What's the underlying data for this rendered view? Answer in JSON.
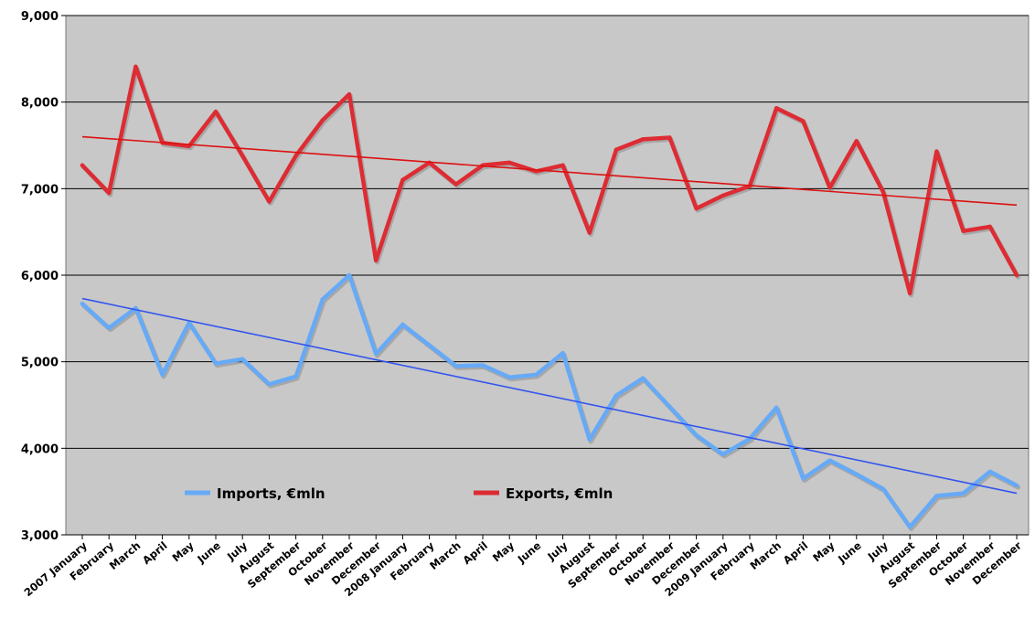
{
  "chart_data": {
    "type": "line",
    "title": "",
    "xlabel": "",
    "ylabel": "",
    "ylim": [
      3000,
      9000
    ],
    "y_ticks": [
      3000,
      4000,
      5000,
      6000,
      7000,
      8000,
      9000
    ],
    "y_tick_labels": [
      "3,000",
      "4,000",
      "5,000",
      "6,000",
      "7,000",
      "8,000",
      "9,000"
    ],
    "grid": true,
    "legend_position": "bottom-left",
    "categories": [
      "2007 January",
      "February",
      "March",
      "April",
      "May",
      "June",
      "July",
      "August",
      "September",
      "October",
      "November",
      "December",
      "2008 January",
      "February",
      "March",
      "April",
      "May",
      "June",
      "July",
      "August",
      "September",
      "October",
      "November",
      "December",
      "2009 January",
      "February",
      "March",
      "April",
      "May",
      "June",
      "July",
      "August",
      "September",
      "October",
      "November",
      "December"
    ],
    "series": [
      {
        "name": "Imports, €mln",
        "color": "#66aaf7",
        "values": [
          5670,
          5390,
          5620,
          4850,
          5450,
          4980,
          5030,
          4740,
          4830,
          5720,
          6000,
          5090,
          5430,
          5190,
          4950,
          4960,
          4820,
          4850,
          5100,
          4100,
          4610,
          4810,
          4480,
          4150,
          3930,
          4110,
          4470,
          3650,
          3860,
          3700,
          3530,
          3090,
          3450,
          3480,
          3730,
          3570
        ],
        "trend": {
          "start": 5730,
          "end": 3480,
          "color": "#3355ee"
        }
      },
      {
        "name": "Exports, €mln",
        "color": "#dd2c33",
        "values": [
          7270,
          6950,
          8410,
          7530,
          7490,
          7890,
          7380,
          6850,
          7380,
          7790,
          8090,
          6170,
          7100,
          7300,
          7050,
          7270,
          7300,
          7200,
          7270,
          6490,
          7450,
          7570,
          7590,
          6770,
          6920,
          7030,
          7930,
          7780,
          7010,
          7550,
          6960,
          5790,
          7430,
          6510,
          6560,
          6000
        ],
        "trend": {
          "start": 7600,
          "end": 6810,
          "color": "#dd1111"
        }
      }
    ]
  }
}
